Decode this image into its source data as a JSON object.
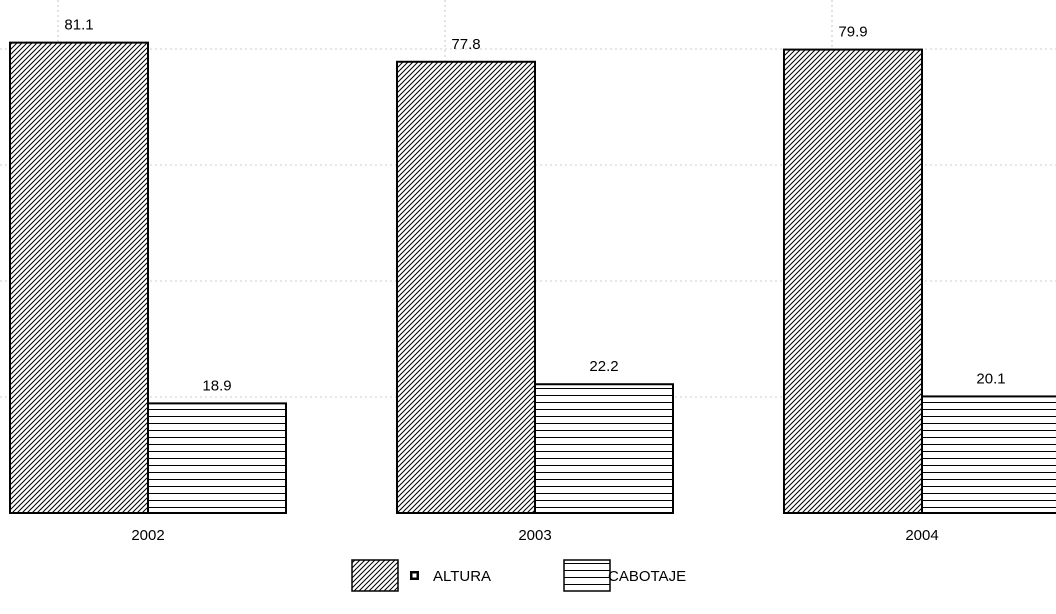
{
  "chart_data": {
    "type": "bar",
    "categories": [
      "2002",
      "2003",
      "2004"
    ],
    "series": [
      {
        "name": "ALTURA",
        "values": [
          81.1,
          77.8,
          79.9
        ],
        "pattern": "diagonal-hatch"
      },
      {
        "name": "CABOTAJE",
        "values": [
          18.9,
          22.2,
          20.1
        ],
        "pattern": "horizontal-lines"
      }
    ],
    "title": "",
    "xlabel": "",
    "ylabel": "",
    "ylim": [
      0,
      100
    ],
    "grid": true,
    "legend_position": "bottom-center",
    "colors": {
      "stroke": "#000000",
      "fill": "#ffffff",
      "grid": "#a0a0a0"
    }
  }
}
